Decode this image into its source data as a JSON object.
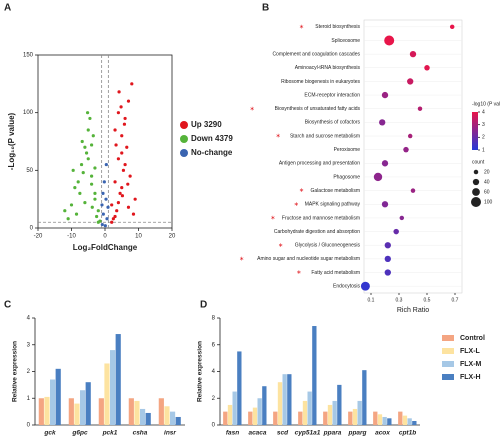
{
  "chart_data": [
    {
      "type": "scatter",
      "label": "A",
      "xlabel": "Log₂FoldChange",
      "ylabel": "-Log₁₀(P value)",
      "xlim": [
        -20,
        20
      ],
      "ylim": [
        0,
        150
      ],
      "xticks": [
        -20,
        -10,
        0,
        10,
        20
      ],
      "yticks": [
        0,
        50,
        100,
        150
      ],
      "cutoff_x": [
        -1,
        1
      ],
      "cutoff_y": 5,
      "legend": "right",
      "series": [
        {
          "name": "Up 3290",
          "color": "#e0161d",
          "x": [
            2,
            3,
            4,
            5,
            6,
            7,
            8,
            3.5,
            4.5,
            5.5,
            2.5,
            6.5,
            3,
            4,
            5,
            7.5,
            9,
            2,
            3,
            4,
            5,
            6,
            4.2,
            5.8,
            3.3,
            6.8,
            8.5,
            4.8,
            5.2,
            7
          ],
          "y": [
            20,
            40,
            60,
            80,
            95,
            110,
            125,
            15,
            30,
            50,
            8,
            70,
            85,
            100,
            65,
            45,
            25,
            5,
            10,
            22,
            35,
            55,
            118,
            90,
            72,
            38,
            12,
            105,
            28,
            18
          ]
        },
        {
          "name": "Down 4379",
          "color": "#55b33a",
          "x": [
            -2,
            -3,
            -4,
            -5,
            -6,
            -7,
            -8,
            -9,
            -10,
            -3.5,
            -4.5,
            -5.5,
            -2.5,
            -6.5,
            -3,
            -4,
            -5,
            -7.5,
            -8.5,
            -2,
            -3,
            -4,
            -6,
            -11,
            -12,
            -1.5,
            -5.2,
            -3.8,
            -9.5,
            -6.8
          ],
          "y": [
            15,
            30,
            45,
            60,
            70,
            55,
            40,
            35,
            20,
            80,
            95,
            65,
            10,
            48,
            25,
            72,
            85,
            30,
            12,
            5,
            52,
            38,
            22,
            8,
            15,
            6,
            100,
            18,
            50,
            75
          ]
        },
        {
          "name": "No-change",
          "color": "#3a64b0",
          "x": [
            -0.8,
            -0.5,
            0.3,
            0.6,
            -0.2,
            0.9,
            -0.6,
            0.1,
            0.4,
            -0.9
          ],
          "y": [
            3,
            12,
            25,
            8,
            40,
            18,
            30,
            2,
            55,
            20
          ]
        }
      ]
    },
    {
      "type": "dot",
      "label": "B",
      "xlabel": "Rich Ratio",
      "xlim": [
        0.05,
        0.75
      ],
      "xticks": [
        0.1,
        0.3,
        0.5,
        0.7
      ],
      "categories": [
        "Steroid biosynthesis",
        "Spliceosome",
        "Complement and coagulation cascades",
        "Aminoacyl-tRNA biosynthesis",
        "Ribosome biogenesis in eukaryotes",
        "ECM-receptor interaction",
        "Biosynthesis of unsaturated fatty acids",
        "Biosynthesis of cofactors",
        "Starch and sucrose metabolism",
        "Peroxisome",
        "Antigen processing and presentation",
        "Phagosome",
        "Galactose metabolism",
        "MAPK signaling pathway",
        "Fructose and mannose metabolism",
        "Carbohydrate digestion and absorption",
        "Glycolysis / Gluconeogenesis",
        "Amino sugar and nucleotide sugar metabolism",
        "Fatty acid metabolism",
        "Endocytosis"
      ],
      "marked": [
        true,
        false,
        false,
        false,
        false,
        false,
        true,
        false,
        true,
        false,
        false,
        false,
        true,
        true,
        true,
        false,
        true,
        true,
        true,
        false
      ],
      "values": [
        0.68,
        0.23,
        0.4,
        0.5,
        0.38,
        0.2,
        0.45,
        0.18,
        0.38,
        0.35,
        0.2,
        0.15,
        0.4,
        0.2,
        0.32,
        0.28,
        0.22,
        0.22,
        0.22,
        0.06
      ],
      "counts": [
        20,
        100,
        40,
        30,
        40,
        40,
        20,
        40,
        20,
        30,
        40,
        70,
        20,
        40,
        20,
        30,
        40,
        40,
        40,
        80
      ],
      "logp": [
        4,
        4,
        3.7,
        3.9,
        3.5,
        2.8,
        3.2,
        2.5,
        3,
        2.7,
        2.5,
        2.6,
        2.8,
        2.4,
        2.5,
        2,
        1.8,
        1.6,
        1.6,
        1.2
      ],
      "colorbar": {
        "title": "-log10 (P value)",
        "ticks": [
          1,
          2,
          3,
          4
        ],
        "colors": [
          "#2638d8",
          "#e8154a"
        ]
      },
      "size_title": "count",
      "size_ticks": [
        20,
        40,
        60,
        100
      ]
    },
    {
      "type": "bar",
      "label": "C",
      "ylabel": "Relative expression",
      "ylim": [
        0,
        4
      ],
      "yticks": [
        0,
        1,
        2,
        3,
        4
      ],
      "categories": [
        "gck",
        "g6pc",
        "pck1",
        "csha",
        "insr"
      ],
      "series": [
        {
          "name": "Control",
          "color": "#f4a582",
          "values": [
            1,
            1,
            1,
            1,
            1
          ]
        },
        {
          "name": "FLX-L",
          "color": "#fde3a0",
          "values": [
            1.05,
            0.8,
            2.3,
            0.9,
            0.7
          ]
        },
        {
          "name": "FLX-M",
          "color": "#a6c8e6",
          "values": [
            1.7,
            1.3,
            2.8,
            0.6,
            0.5
          ]
        },
        {
          "name": "FLX-H",
          "color": "#4a7fc1",
          "values": [
            2.1,
            1.6,
            3.4,
            0.45,
            0.3
          ]
        }
      ]
    },
    {
      "type": "bar",
      "label": "D",
      "ylabel": "Relative expression",
      "ylim": [
        0,
        8
      ],
      "yticks": [
        0,
        2,
        4,
        6,
        8
      ],
      "legend": "right",
      "categories": [
        "fasn",
        "acaca",
        "scd",
        "cyp51a1",
        "ppara",
        "pparg",
        "acox",
        "cpt1b"
      ],
      "series": [
        {
          "name": "Control",
          "color": "#f4a582",
          "values": [
            1,
            1,
            1,
            1,
            1,
            1,
            1,
            1
          ]
        },
        {
          "name": "FLX-L",
          "color": "#fde3a0",
          "values": [
            1.5,
            1.3,
            3.2,
            1.8,
            1.5,
            1.2,
            0.8,
            0.7
          ]
        },
        {
          "name": "FLX-M",
          "color": "#a6c8e6",
          "values": [
            2.5,
            2,
            3.8,
            2.5,
            1.8,
            1.8,
            0.6,
            0.5
          ]
        },
        {
          "name": "FLX-H",
          "color": "#4a7fc1",
          "values": [
            5.5,
            2.9,
            3.8,
            7.4,
            3,
            4.1,
            0.5,
            0.3
          ]
        }
      ]
    }
  ]
}
